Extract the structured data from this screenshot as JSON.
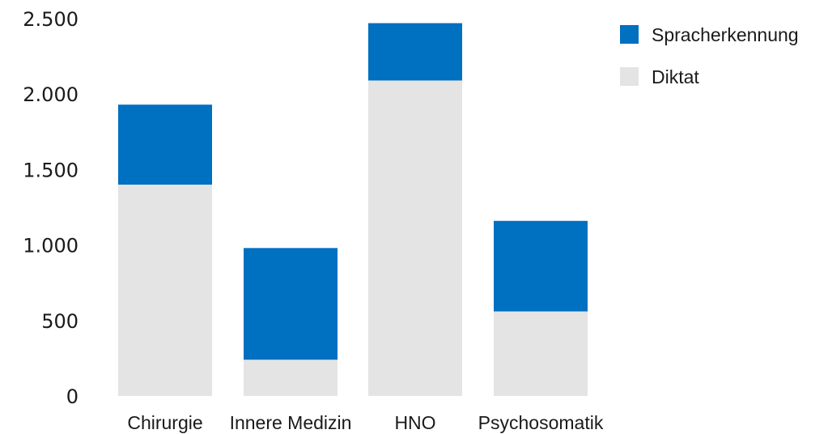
{
  "chart_data": {
    "type": "bar",
    "stacked": true,
    "categories": [
      "Chirurgie",
      "Innere Medizin",
      "HNO",
      "Psychosomatik"
    ],
    "series": [
      {
        "name": "Diktat",
        "values": [
          1400,
          240,
          2090,
          560
        ],
        "color": "#e4e4e4"
      },
      {
        "name": "Spracherkennung",
        "values": [
          530,
          740,
          380,
          600
        ],
        "color": "#0070c0"
      }
    ],
    "ylim": [
      0,
      2500
    ],
    "yticks": [
      0,
      500,
      1000,
      1500,
      2000,
      2500
    ],
    "ytick_labels": [
      "0",
      "500",
      "1.000",
      "1.500",
      "2.000",
      "2.500"
    ],
    "grid": false,
    "legend_position": "top-right",
    "legend_order": [
      "Spracherkennung",
      "Diktat"
    ]
  }
}
